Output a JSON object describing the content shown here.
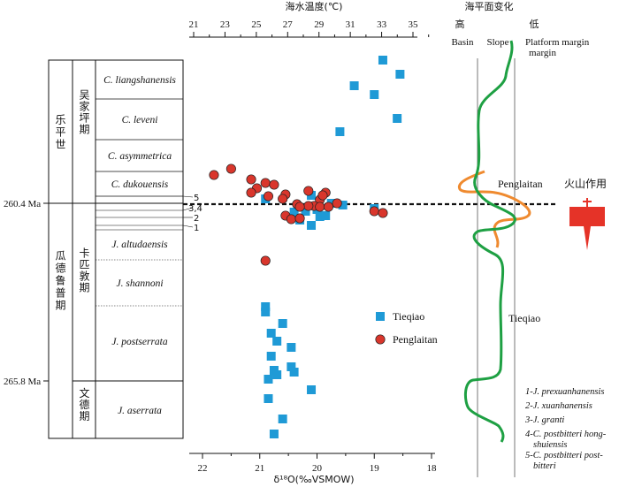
{
  "chart_data": {
    "type": "scatter",
    "xlabel": "δ¹⁸O(‰VSMOW)",
    "x2label": "海水温度(℃)",
    "xlim": [
      22,
      18
    ],
    "x_ticks": [
      22,
      21,
      20,
      19,
      18
    ],
    "x2_ticks": [
      21,
      23,
      25,
      27,
      29,
      31,
      33,
      35
    ],
    "ylabel_ticks": [
      {
        "label": "260.4 Ma",
        "age": 260.4
      },
      {
        "label": "265.8 Ma",
        "age": 265.8
      }
    ],
    "stratigraphy": {
      "series": [
        {
          "name": "乐平世",
          "stage": "吴家坪期"
        },
        {
          "name": "瓜德鲁普期",
          "stage": "卡匹敦期"
        },
        {
          "name": "",
          "stage": "文德期"
        }
      ],
      "zones": [
        "C. liangshanensis",
        "C. leveni",
        "C. asymmetrica",
        "C. dukouensis",
        "J. altudaensis",
        "J. shannoni",
        "J. postserrata",
        "J. aserrata"
      ],
      "sub_zone_labels": [
        "5",
        "3,4",
        "2",
        "1"
      ],
      "footnotes": [
        "1-J. prexuanhanensis",
        "2-J. xuanhanensis",
        "3-J.  granti",
        "4-C. postbitteri hong-",
        "shuiensis",
        "5-C. postbitteri post-",
        "bitteri"
      ]
    },
    "series": [
      {
        "name": "Tieqiao",
        "color": "#1f9ad6",
        "marker": "square",
        "points": [
          [
            18.85,
            68
          ],
          [
            18.55,
            84
          ],
          [
            19.35,
            97
          ],
          [
            19.0,
            107
          ],
          [
            18.6,
            134
          ],
          [
            19.6,
            149
          ],
          [
            20.9,
            225
          ],
          [
            20.1,
            221
          ],
          [
            19.75,
            230
          ],
          [
            20.0,
            237
          ],
          [
            19.55,
            232
          ],
          [
            20.4,
            240
          ],
          [
            19.95,
            245
          ],
          [
            20.3,
            249
          ],
          [
            19.85,
            244
          ],
          [
            20.1,
            255
          ],
          [
            20.2,
            239
          ],
          [
            19.0,
            236
          ],
          [
            20.9,
            347
          ],
          [
            20.9,
            353
          ],
          [
            20.6,
            366
          ],
          [
            20.8,
            377
          ],
          [
            20.7,
            386
          ],
          [
            20.45,
            393
          ],
          [
            20.8,
            403
          ],
          [
            20.75,
            419
          ],
          [
            20.45,
            415
          ],
          [
            20.4,
            421
          ],
          [
            20.1,
            441
          ],
          [
            20.85,
            429
          ],
          [
            20.7,
            424
          ],
          [
            20.85,
            451
          ],
          [
            20.6,
            474
          ],
          [
            20.75,
            491
          ]
        ]
      },
      {
        "name": "Penglaitan",
        "color": "#d9362c",
        "marker": "circle",
        "points": [
          [
            21.8,
            198
          ],
          [
            21.5,
            191
          ],
          [
            21.15,
            203
          ],
          [
            20.9,
            207
          ],
          [
            21.05,
            213
          ],
          [
            20.75,
            209
          ],
          [
            21.15,
            218
          ],
          [
            20.85,
            222
          ],
          [
            20.55,
            220
          ],
          [
            20.6,
            225
          ],
          [
            20.15,
            216
          ],
          [
            19.85,
            218
          ],
          [
            19.95,
            226
          ],
          [
            20.35,
            231
          ],
          [
            20.05,
            233
          ],
          [
            20.15,
            233
          ],
          [
            20.3,
            234
          ],
          [
            19.95,
            234
          ],
          [
            19.8,
            234
          ],
          [
            19.65,
            230
          ],
          [
            19.9,
            221
          ],
          [
            20.55,
            244
          ],
          [
            20.45,
            248
          ],
          [
            20.3,
            247
          ],
          [
            19.0,
            239
          ],
          [
            18.85,
            241
          ],
          [
            20.9,
            295
          ]
        ]
      }
    ],
    "legend": {
      "placement": "middle-right",
      "entries": [
        "Tieqiao",
        "Penglaitan"
      ]
    },
    "sea_level": {
      "title": "海平面变化",
      "high_label": "高",
      "low_label": "低",
      "columns": [
        "Basin",
        "Slope",
        "Platform margin"
      ],
      "curve_labels": [
        "Penglaitan",
        "Tieqiao"
      ]
    },
    "volcanic_label": "火山作用"
  }
}
